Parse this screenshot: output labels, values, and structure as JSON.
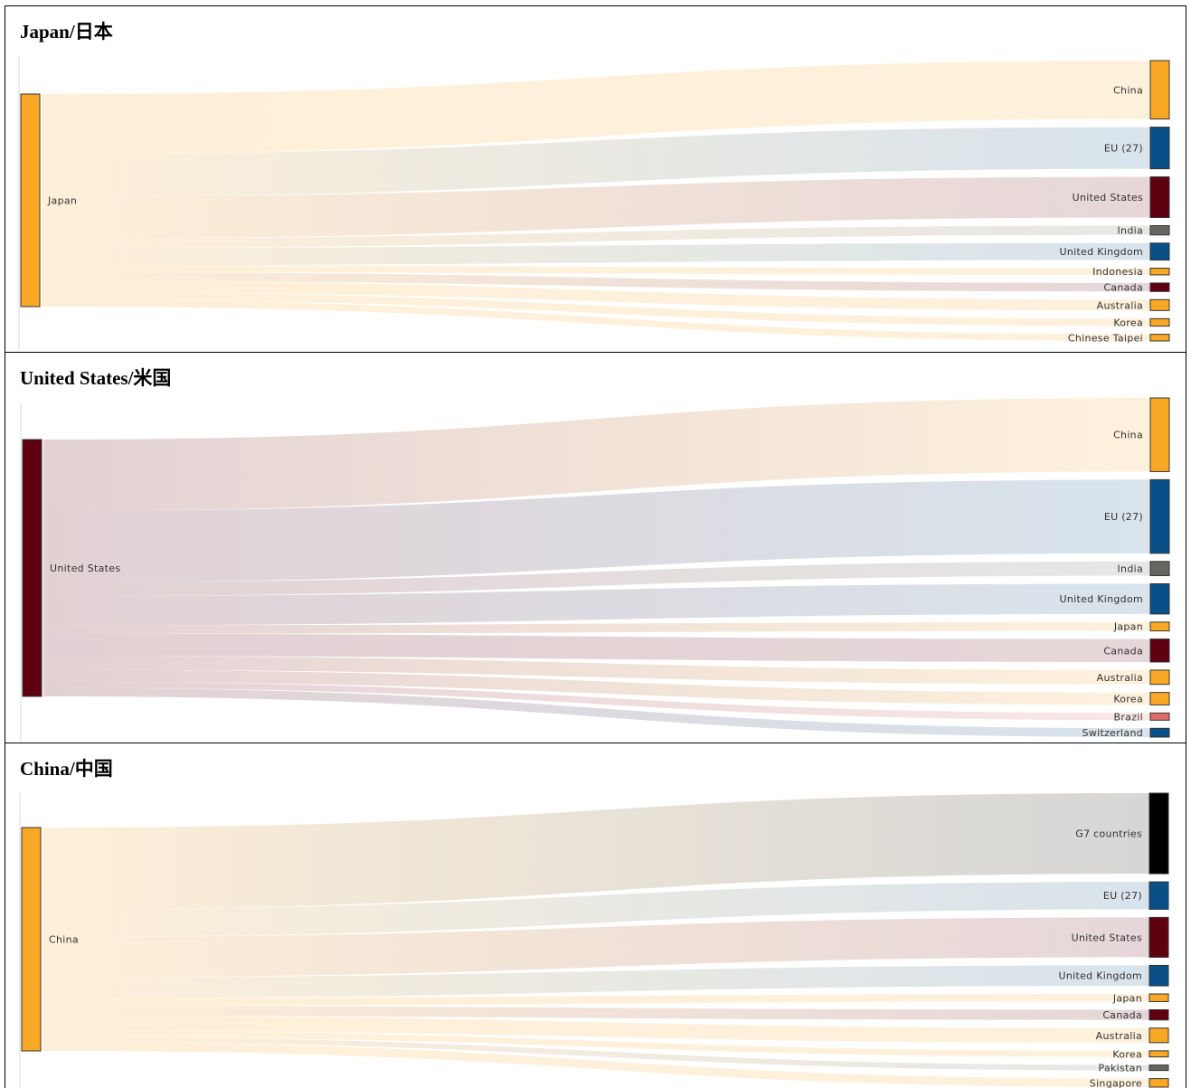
{
  "colors": {
    "japan": "#f9a825",
    "china": "#f9a825",
    "eu": "#0a5088",
    "united_states": "#5f0010",
    "india": "#666660",
    "united_kingdom": "#0a5088",
    "indonesia": "#f9a825",
    "canada": "#5f0010",
    "australia": "#f9a825",
    "korea": "#f9a825",
    "chinese_taipei": "#f9a825",
    "brazil": "#e06b6b",
    "switzerland": "#0a5088",
    "g7": "#000000",
    "pakistan": "#666660",
    "singapore": "#f9a825"
  },
  "panels": [
    {
      "title": "Japan/日本",
      "source": {
        "label": "Japan",
        "color": "#f9a825",
        "value": 100
      },
      "targets": [
        {
          "label": "China",
          "value": 28.9,
          "color": "#f9a825"
        },
        {
          "label": "EU (27)",
          "value": 20.6,
          "color": "#0a5088"
        },
        {
          "label": "United States",
          "value": 20.1,
          "color": "#5f0010"
        },
        {
          "label": "India",
          "value": 4.6,
          "color": "#666660"
        },
        {
          "label": "United Kingdom",
          "value": 8.4,
          "color": "#0a5088"
        },
        {
          "label": "Indonesia",
          "value": 3.3,
          "color": "#f9a825"
        },
        {
          "label": "Canada",
          "value": 4.2,
          "color": "#5f0010"
        },
        {
          "label": "Australia",
          "value": 5.4,
          "color": "#f9a825"
        },
        {
          "label": "Korea",
          "value": 3.7,
          "color": "#f9a825"
        },
        {
          "label": "Chinese Taipei",
          "value": 3.3,
          "color": "#f9a825"
        }
      ]
    },
    {
      "title": "United States/米国",
      "source": {
        "label": "United States",
        "color": "#5f0010",
        "value": 100
      },
      "targets": [
        {
          "label": "China",
          "value": 28.5,
          "color": "#f9a825"
        },
        {
          "label": "EU (27)",
          "value": 28.5,
          "color": "#0a5088"
        },
        {
          "label": "India",
          "value": 5.5,
          "color": "#666660"
        },
        {
          "label": "United Kingdom",
          "value": 11.7,
          "color": "#0a5088"
        },
        {
          "label": "Japan",
          "value": 3.4,
          "color": "#f9a825"
        },
        {
          "label": "Canada",
          "value": 8.9,
          "color": "#5f0010"
        },
        {
          "label": "Australia",
          "value": 5.5,
          "color": "#f9a825"
        },
        {
          "label": "Korea",
          "value": 4.8,
          "color": "#f9a825"
        },
        {
          "label": "Brazil",
          "value": 2.4,
          "color": "#e06b6b"
        },
        {
          "label": "Switzerland",
          "value": 3.4,
          "color": "#0a5088"
        }
      ]
    },
    {
      "title": "China/中国",
      "source": {
        "label": "China",
        "color": "#f9a825",
        "value": 100
      },
      "targets": [
        {
          "label": "G7 countries",
          "value": 37.0,
          "color": "#000000"
        },
        {
          "label": "EU (27)",
          "value": 12.6,
          "color": "#0a5088"
        },
        {
          "label": "United States",
          "value": 18.3,
          "color": "#5f0010"
        },
        {
          "label": "United Kingdom",
          "value": 9.4,
          "color": "#0a5088"
        },
        {
          "label": "Japan",
          "value": 3.5,
          "color": "#f9a825"
        },
        {
          "label": "Canada",
          "value": 4.7,
          "color": "#5f0010"
        },
        {
          "label": "Australia",
          "value": 6.7,
          "color": "#f9a825"
        },
        {
          "label": "Korea",
          "value": 2.8,
          "color": "#f9a825"
        },
        {
          "label": "Pakistan",
          "value": 2.4,
          "color": "#666660"
        },
        {
          "label": "Singapore",
          "value": 3.9,
          "color": "#f9a825"
        }
      ]
    }
  ]
}
